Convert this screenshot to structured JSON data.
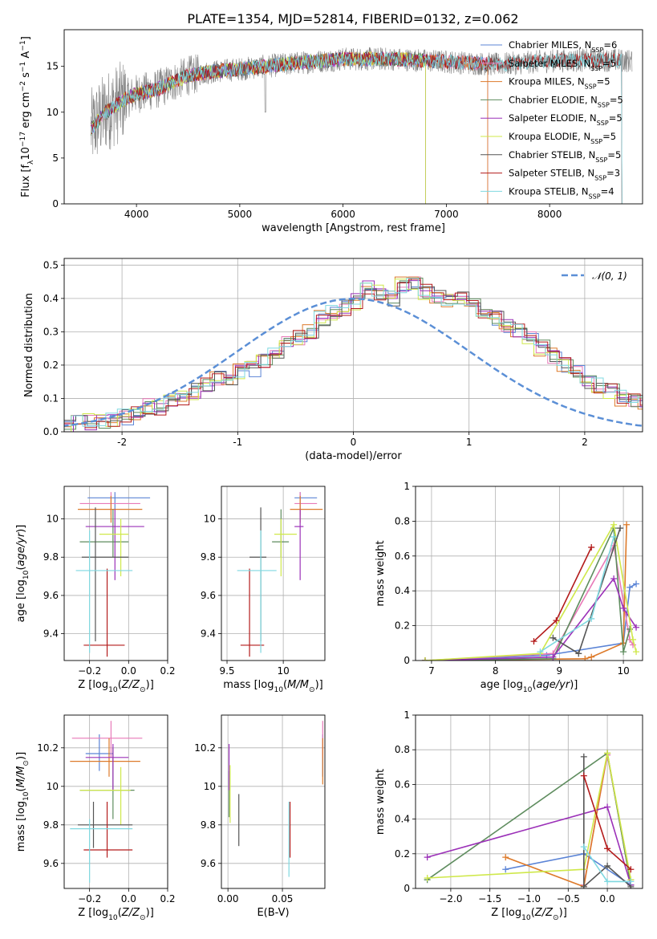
{
  "figure_title": "PLATE=1354, MJD=52814, FIBERID=0132, z=0.062",
  "colors": {
    "Chabrier MILES": "#5b84d6",
    "Salpeter MILES": "#e879b8",
    "Kroupa MILES": "#dd7a2a",
    "Chabrier ELODIE": "#5e8c5e",
    "Salpeter ELODIE": "#9b30b8",
    "Kroupa ELODIE": "#cfe84a",
    "Chabrier STELIB": "#555555",
    "Salpeter STELIB": "#b31b1b",
    "Kroupa STELIB": "#7fd8e0",
    "data_grey": "#808080",
    "normal_curve": "#5b8fd6"
  },
  "chart_data": [
    {
      "id": "spectrum",
      "type": "line",
      "xlabel": "wavelength [Angstrom, rest frame]",
      "ylabel": "Flux [f_λ 10^-17 erg cm^-2 s^-1 A^-1]",
      "xlim": [
        3300,
        8900
      ],
      "ylim": [
        0,
        19
      ],
      "xticks": [
        4000,
        5000,
        6000,
        7000,
        8000
      ],
      "yticks": [
        0,
        5,
        10,
        15
      ],
      "grid": false,
      "legend_position": "upper right",
      "data_color": "#808080",
      "continuum_knots": [
        [
          3550,
          8
        ],
        [
          3700,
          10
        ],
        [
          3900,
          11.5
        ],
        [
          4000,
          12
        ],
        [
          4200,
          12.5
        ],
        [
          4500,
          14
        ],
        [
          4800,
          14.5
        ],
        [
          5000,
          14.7
        ],
        [
          5500,
          15.3
        ],
        [
          6000,
          15.8
        ],
        [
          6500,
          15.8
        ],
        [
          7000,
          15.5
        ],
        [
          7500,
          15.2
        ],
        [
          8000,
          15.6
        ],
        [
          8500,
          15.7
        ],
        [
          8800,
          15.6
        ]
      ],
      "series": [
        {
          "label": "Chabrier MILES",
          "nssp": "6",
          "xmax": 7400
        },
        {
          "label": "Salpeter MILES",
          "nssp": "5",
          "xmax": 7400
        },
        {
          "label": "Kroupa MILES",
          "nssp": "5",
          "xmax": 7400
        },
        {
          "label": "Chabrier ELODIE",
          "nssp": "5",
          "xmax": 6800
        },
        {
          "label": "Salpeter ELODIE",
          "nssp": "5",
          "xmax": 6800
        },
        {
          "label": "Kroupa ELODIE",
          "nssp": "5",
          "xmax": 6800
        },
        {
          "label": "Chabrier STELIB",
          "nssp": "5",
          "xmax": 8700
        },
        {
          "label": "Salpeter STELIB",
          "nssp": "3",
          "xmax": 8700
        },
        {
          "label": "Kroupa STELIB",
          "nssp": "4",
          "xmax": 8700
        }
      ],
      "legend_prefix": "N",
      "legend_sub": "SSP"
    },
    {
      "id": "residuals",
      "type": "area",
      "xlabel": "(data-model)/error",
      "ylabel": "Normed distribution",
      "xlim": [
        -2.5,
        2.5
      ],
      "ylim": [
        0,
        0.52
      ],
      "xticks": [
        -2,
        -1,
        0,
        1,
        2
      ],
      "yticks": [
        0.0,
        0.1,
        0.2,
        0.3,
        0.4,
        0.5
      ],
      "grid": true,
      "legend_label": "𝒩(0, 1)",
      "legend_position": "upper right",
      "bin_width": 0.1,
      "bin_start": -2.5,
      "hist_series": [
        "Chabrier MILES",
        "Salpeter MILES",
        "Kroupa MILES",
        "Chabrier ELODIE",
        "Salpeter ELODIE",
        "Kroupa ELODIE",
        "Chabrier STELIB",
        "Salpeter STELIB",
        "Kroupa STELIB"
      ],
      "hist_values": [
        0.015,
        0.025,
        0.03,
        0.03,
        0.04,
        0.045,
        0.06,
        0.075,
        0.075,
        0.09,
        0.1,
        0.12,
        0.14,
        0.16,
        0.16,
        0.18,
        0.19,
        0.21,
        0.24,
        0.27,
        0.28,
        0.3,
        0.34,
        0.36,
        0.37,
        0.39,
        0.43,
        0.42,
        0.4,
        0.44,
        0.45,
        0.42,
        0.41,
        0.39,
        0.4,
        0.38,
        0.36,
        0.34,
        0.32,
        0.3,
        0.28,
        0.25,
        0.23,
        0.2,
        0.18,
        0.15,
        0.14,
        0.12,
        0.1,
        0.09,
        0.08,
        0.07,
        0.06,
        0.05,
        0.04,
        0.03
      ]
    },
    {
      "id": "age_vs_Z",
      "type": "scatter",
      "xlabel": "Z [log10(Z/Z⊙)]",
      "ylabel": "age [log10(age/yr)]",
      "xlim": [
        -0.33,
        0.2
      ],
      "ylim": [
        9.26,
        10.17
      ],
      "xticks": [
        -0.2,
        0.0,
        0.2
      ],
      "xticklabels": [
        "−0.2",
        "0.0",
        "0.2"
      ],
      "yticks": [
        9.4,
        9.6,
        9.8,
        10.0
      ],
      "grid": true,
      "points": [
        {
          "s": "Chabrier MILES",
          "x": -0.07,
          "xlo": -0.21,
          "xhi": 0.11,
          "y": 10.11,
          "ylo": 10.05,
          "yhi": 10.14
        },
        {
          "s": "Salpeter MILES",
          "x": -0.09,
          "xlo": -0.25,
          "xhi": 0.06,
          "y": 10.08,
          "ylo": 10.02,
          "yhi": 10.14
        },
        {
          "s": "Kroupa MILES",
          "x": -0.09,
          "xlo": -0.26,
          "xhi": 0.07,
          "y": 10.05,
          "ylo": 9.98,
          "yhi": 10.12
        },
        {
          "s": "Chabrier ELODIE",
          "x": -0.08,
          "xlo": -0.25,
          "xhi": 0.0,
          "y": 9.88,
          "ylo": 9.8,
          "yhi": 10.05
        },
        {
          "s": "Salpeter ELODIE",
          "x": -0.07,
          "xlo": -0.22,
          "xhi": 0.08,
          "y": 9.96,
          "ylo": 9.68,
          "yhi": 10.05
        },
        {
          "s": "Kroupa ELODIE",
          "x": -0.04,
          "xlo": -0.15,
          "xhi": 0.0,
          "y": 9.92,
          "ylo": 9.7,
          "yhi": 10.0
        },
        {
          "s": "Chabrier STELIB",
          "x": -0.17,
          "xlo": -0.24,
          "xhi": 0.0,
          "y": 9.8,
          "ylo": 9.36,
          "yhi": 10.06
        },
        {
          "s": "Salpeter STELIB",
          "x": -0.11,
          "xlo": -0.23,
          "xhi": -0.02,
          "y": 9.34,
          "ylo": 9.28,
          "yhi": 9.74
        },
        {
          "s": "Kroupa STELIB",
          "x": -0.2,
          "xlo": -0.27,
          "xhi": 0.02,
          "y": 9.73,
          "ylo": 9.3,
          "yhi": 9.94
        }
      ]
    },
    {
      "id": "age_vs_mass",
      "type": "scatter",
      "xlabel": "mass [log10(M/M⊙)]",
      "ylabel": "",
      "xlim": [
        9.45,
        10.37
      ],
      "ylim": [
        9.26,
        10.17
      ],
      "xticks": [
        9.5,
        10.0
      ],
      "yticks": [
        9.4,
        9.6,
        9.8,
        10.0
      ],
      "grid": true,
      "points": [
        {
          "s": "Chabrier MILES",
          "x": 10.15,
          "xlo": 10.1,
          "xhi": 10.3,
          "y": 10.11,
          "ylo": 10.05,
          "yhi": 10.14
        },
        {
          "s": "Salpeter MILES",
          "x": 10.15,
          "xlo": 10.1,
          "xhi": 10.3,
          "y": 10.08,
          "ylo": 10.02,
          "yhi": 10.14
        },
        {
          "s": "Kroupa MILES",
          "x": 10.15,
          "xlo": 10.06,
          "xhi": 10.35,
          "y": 10.05,
          "ylo": 9.98,
          "yhi": 10.12
        },
        {
          "s": "Chabrier ELODIE",
          "x": 9.98,
          "xlo": 9.9,
          "xhi": 10.05,
          "y": 9.88,
          "ylo": 9.8,
          "yhi": 10.05
        },
        {
          "s": "Salpeter ELODIE",
          "x": 10.15,
          "xlo": 10.1,
          "xhi": 10.18,
          "y": 9.96,
          "ylo": 9.68,
          "yhi": 10.05
        },
        {
          "s": "Kroupa ELODIE",
          "x": 9.98,
          "xlo": 9.92,
          "xhi": 10.12,
          "y": 9.92,
          "ylo": 9.7,
          "yhi": 10.0
        },
        {
          "s": "Chabrier STELIB",
          "x": 9.8,
          "xlo": 9.7,
          "xhi": 9.85,
          "y": 9.8,
          "ylo": 9.36,
          "yhi": 10.06
        },
        {
          "s": "Salpeter STELIB",
          "x": 9.7,
          "xlo": 9.62,
          "xhi": 9.83,
          "y": 9.34,
          "ylo": 9.28,
          "yhi": 9.74
        },
        {
          "s": "Kroupa STELIB",
          "x": 9.8,
          "xlo": 9.59,
          "xhi": 9.94,
          "y": 9.73,
          "ylo": 9.3,
          "yhi": 9.94
        }
      ]
    },
    {
      "id": "weight_vs_age",
      "type": "line",
      "xlabel": "age [log10(age/yr)]",
      "ylabel": "mass weight",
      "xlim": [
        6.75,
        10.3
      ],
      "ylim": [
        0,
        1.0
      ],
      "xticks": [
        7,
        8,
        9,
        10
      ],
      "yticks": [
        0.0,
        0.2,
        0.4,
        0.6,
        0.8,
        1.0
      ],
      "grid": true,
      "series": [
        {
          "s": "Chabrier MILES",
          "pts": [
            [
              6.9,
              0.0
            ],
            [
              8.8,
              0.03
            ],
            [
              10.0,
              0.1
            ],
            [
              10.1,
              0.42
            ],
            [
              10.2,
              0.44
            ]
          ]
        },
        {
          "s": "Salpeter MILES",
          "pts": [
            [
              6.9,
              0.0
            ],
            [
              8.9,
              0.04
            ],
            [
              9.85,
              0.66
            ],
            [
              10.1,
              0.12
            ],
            [
              10.15,
              0.09
            ]
          ]
        },
        {
          "s": "Kroupa MILES",
          "pts": [
            [
              6.9,
              0.0
            ],
            [
              9.4,
              0.01
            ],
            [
              9.5,
              0.02
            ],
            [
              10.0,
              0.1
            ],
            [
              10.05,
              0.78
            ]
          ]
        },
        {
          "s": "Chabrier ELODIE",
          "pts": [
            [
              6.9,
              0.0
            ],
            [
              8.9,
              0.01
            ],
            [
              9.85,
              0.76
            ],
            [
              10.0,
              0.05
            ],
            [
              10.1,
              0.18
            ]
          ]
        },
        {
          "s": "Salpeter ELODIE",
          "pts": [
            [
              6.9,
              0.0
            ],
            [
              8.9,
              0.02
            ],
            [
              9.85,
              0.47
            ],
            [
              10.0,
              0.3
            ],
            [
              10.2,
              0.19
            ]
          ]
        },
        {
          "s": "Kroupa ELODIE",
          "pts": [
            [
              6.9,
              0.0
            ],
            [
              8.7,
              0.04
            ],
            [
              9.85,
              0.78
            ],
            [
              10.15,
              0.12
            ],
            [
              10.2,
              0.05
            ]
          ]
        },
        {
          "s": "Chabrier STELIB",
          "pts": [
            [
              8.9,
              0.13
            ],
            [
              9.3,
              0.04
            ],
            [
              9.95,
              0.76
            ]
          ]
        },
        {
          "s": "Salpeter STELIB",
          "pts": [
            [
              8.6,
              0.11
            ],
            [
              8.95,
              0.23
            ],
            [
              9.5,
              0.65
            ]
          ]
        },
        {
          "s": "Kroupa STELIB",
          "pts": [
            [
              8.7,
              0.05
            ],
            [
              9.5,
              0.24
            ],
            [
              9.85,
              0.71
            ]
          ]
        }
      ]
    },
    {
      "id": "mass_vs_Z",
      "type": "scatter",
      "xlabel": "Z [log10(Z/Z⊙)]",
      "ylabel": "mass [log10(M/M⊙)]",
      "xlim": [
        -0.33,
        0.2
      ],
      "ylim": [
        9.47,
        10.37
      ],
      "xticks": [
        -0.2,
        0.0,
        0.2
      ],
      "xticklabels": [
        "−0.2",
        "0.0",
        "0.2"
      ],
      "yticks": [
        9.6,
        9.8,
        10.0,
        10.2
      ],
      "grid": true,
      "points": [
        {
          "s": "Chabrier MILES",
          "x": -0.15,
          "xlo": -0.22,
          "xhi": -0.08,
          "y": 10.17,
          "ylo": 10.08,
          "yhi": 10.27
        },
        {
          "s": "Salpeter MILES",
          "x": -0.09,
          "xlo": -0.29,
          "xhi": 0.07,
          "y": 10.25,
          "ylo": 10.15,
          "yhi": 10.34
        },
        {
          "s": "Kroupa MILES",
          "x": -0.1,
          "xlo": -0.3,
          "xhi": 0.06,
          "y": 10.13,
          "ylo": 10.05,
          "yhi": 10.25
        },
        {
          "s": "Chabrier ELODIE",
          "x": -0.08,
          "xlo": -0.25,
          "xhi": 0.03,
          "y": 9.98,
          "ylo": 9.83,
          "yhi": 10.2
        },
        {
          "s": "Salpeter ELODIE",
          "x": -0.08,
          "xlo": -0.22,
          "xhi": 0.0,
          "y": 10.15,
          "ylo": 9.98,
          "yhi": 10.22
        },
        {
          "s": "Kroupa ELODIE",
          "x": -0.04,
          "xlo": -0.25,
          "xhi": 0.01,
          "y": 9.98,
          "ylo": 9.8,
          "yhi": 10.1
        },
        {
          "s": "Chabrier STELIB",
          "x": -0.18,
          "xlo": -0.26,
          "xhi": 0.02,
          "y": 9.8,
          "ylo": 9.68,
          "yhi": 9.92
        },
        {
          "s": "Salpeter STELIB",
          "x": -0.11,
          "xlo": -0.23,
          "xhi": 0.02,
          "y": 9.67,
          "ylo": 9.63,
          "yhi": 9.92
        },
        {
          "s": "Kroupa STELIB",
          "x": -0.2,
          "xlo": -0.3,
          "xhi": 0.02,
          "y": 9.78,
          "ylo": 9.5,
          "yhi": 9.83
        }
      ]
    },
    {
      "id": "mass_vs_EBV",
      "type": "scatter",
      "xlabel": "E(B-V)",
      "ylabel": "",
      "xlim": [
        -0.006,
        0.089
      ],
      "ylim": [
        9.47,
        10.37
      ],
      "xticks": [
        0.0,
        0.05
      ],
      "xticklabels": [
        "0.00",
        "0.05"
      ],
      "yticks": [
        9.6,
        9.8,
        10.0,
        10.2
      ],
      "grid": true,
      "points": [
        {
          "s": "Chabrier MILES",
          "x": 0.087,
          "y": 10.17,
          "ylo": 10.05,
          "yhi": 10.27
        },
        {
          "s": "Salpeter MILES",
          "x": 0.087,
          "y": 10.25,
          "ylo": 10.15,
          "yhi": 10.34
        },
        {
          "s": "Kroupa MILES",
          "x": 0.087,
          "y": 10.13,
          "ylo": 10.01,
          "yhi": 10.25
        },
        {
          "s": "Chabrier ELODIE",
          "x": 0.001,
          "y": 9.98,
          "ylo": 9.84,
          "yhi": 10.08
        },
        {
          "s": "Salpeter ELODIE",
          "x": 0.001,
          "y": 10.15,
          "ylo": 9.98,
          "yhi": 10.22
        },
        {
          "s": "Kroupa ELODIE",
          "x": 0.002,
          "y": 9.98,
          "ylo": 9.81,
          "yhi": 10.11
        },
        {
          "s": "Chabrier STELIB",
          "x": 0.01,
          "y": 9.8,
          "ylo": 9.69,
          "yhi": 9.96
        },
        {
          "s": "Salpeter STELIB",
          "x": 0.057,
          "y": 9.67,
          "ylo": 9.63,
          "yhi": 9.92
        },
        {
          "s": "Kroupa STELIB",
          "x": 0.056,
          "y": 9.78,
          "ylo": 9.53,
          "yhi": 9.92
        }
      ]
    },
    {
      "id": "weight_vs_Z",
      "type": "line",
      "xlabel": "Z [log10(Z/Z⊙)]",
      "ylabel": "mass weight",
      "xlim": [
        -2.45,
        0.45
      ],
      "ylim": [
        0,
        1.0
      ],
      "xticks": [
        -2.0,
        -1.5,
        -1.0,
        -0.5,
        0.0
      ],
      "xticklabels": [
        "−2.0",
        "−1.5",
        "−1.0",
        "−0.5",
        "0.0"
      ],
      "yticks": [
        0.0,
        0.2,
        0.4,
        0.6,
        0.8,
        1.0
      ],
      "grid": true,
      "series": [
        {
          "s": "Chabrier MILES",
          "pts": [
            [
              -1.3,
              0.11
            ],
            [
              -0.3,
              0.2
            ],
            [
              0.3,
              0.02
            ]
          ]
        },
        {
          "s": "Salpeter MILES",
          "pts": [
            [
              -0.3,
              0.02
            ],
            [
              0.0,
              0.77
            ],
            [
              0.3,
              0.05
            ]
          ]
        },
        {
          "s": "Kroupa MILES",
          "pts": [
            [
              -1.3,
              0.18
            ],
            [
              -0.3,
              0.01
            ],
            [
              0.0,
              0.78
            ],
            [
              0.3,
              0.02
            ]
          ]
        },
        {
          "s": "Chabrier ELODIE",
          "pts": [
            [
              -2.3,
              0.05
            ],
            [
              0.0,
              0.78
            ],
            [
              0.3,
              0.02
            ]
          ]
        },
        {
          "s": "Salpeter ELODIE",
          "pts": [
            [
              -2.3,
              0.18
            ],
            [
              0.0,
              0.47
            ],
            [
              0.3,
              0.02
            ]
          ]
        },
        {
          "s": "Kroupa ELODIE",
          "pts": [
            [
              -2.3,
              0.06
            ],
            [
              -0.3,
              0.11
            ],
            [
              0.0,
              0.78
            ],
            [
              0.3,
              0.05
            ]
          ]
        },
        {
          "s": "Chabrier STELIB",
          "pts": [
            [
              -0.3,
              0.76
            ],
            [
              -0.3,
              0.01
            ],
            [
              0.0,
              0.13
            ],
            [
              0.3,
              0.01
            ]
          ]
        },
        {
          "s": "Salpeter STELIB",
          "pts": [
            [
              -0.3,
              0.65
            ],
            [
              0.0,
              0.23
            ],
            [
              0.3,
              0.11
            ]
          ]
        },
        {
          "s": "Kroupa STELIB",
          "pts": [
            [
              -0.3,
              0.24
            ],
            [
              0.0,
              0.04
            ],
            [
              0.3,
              0.04
            ]
          ]
        }
      ]
    }
  ]
}
